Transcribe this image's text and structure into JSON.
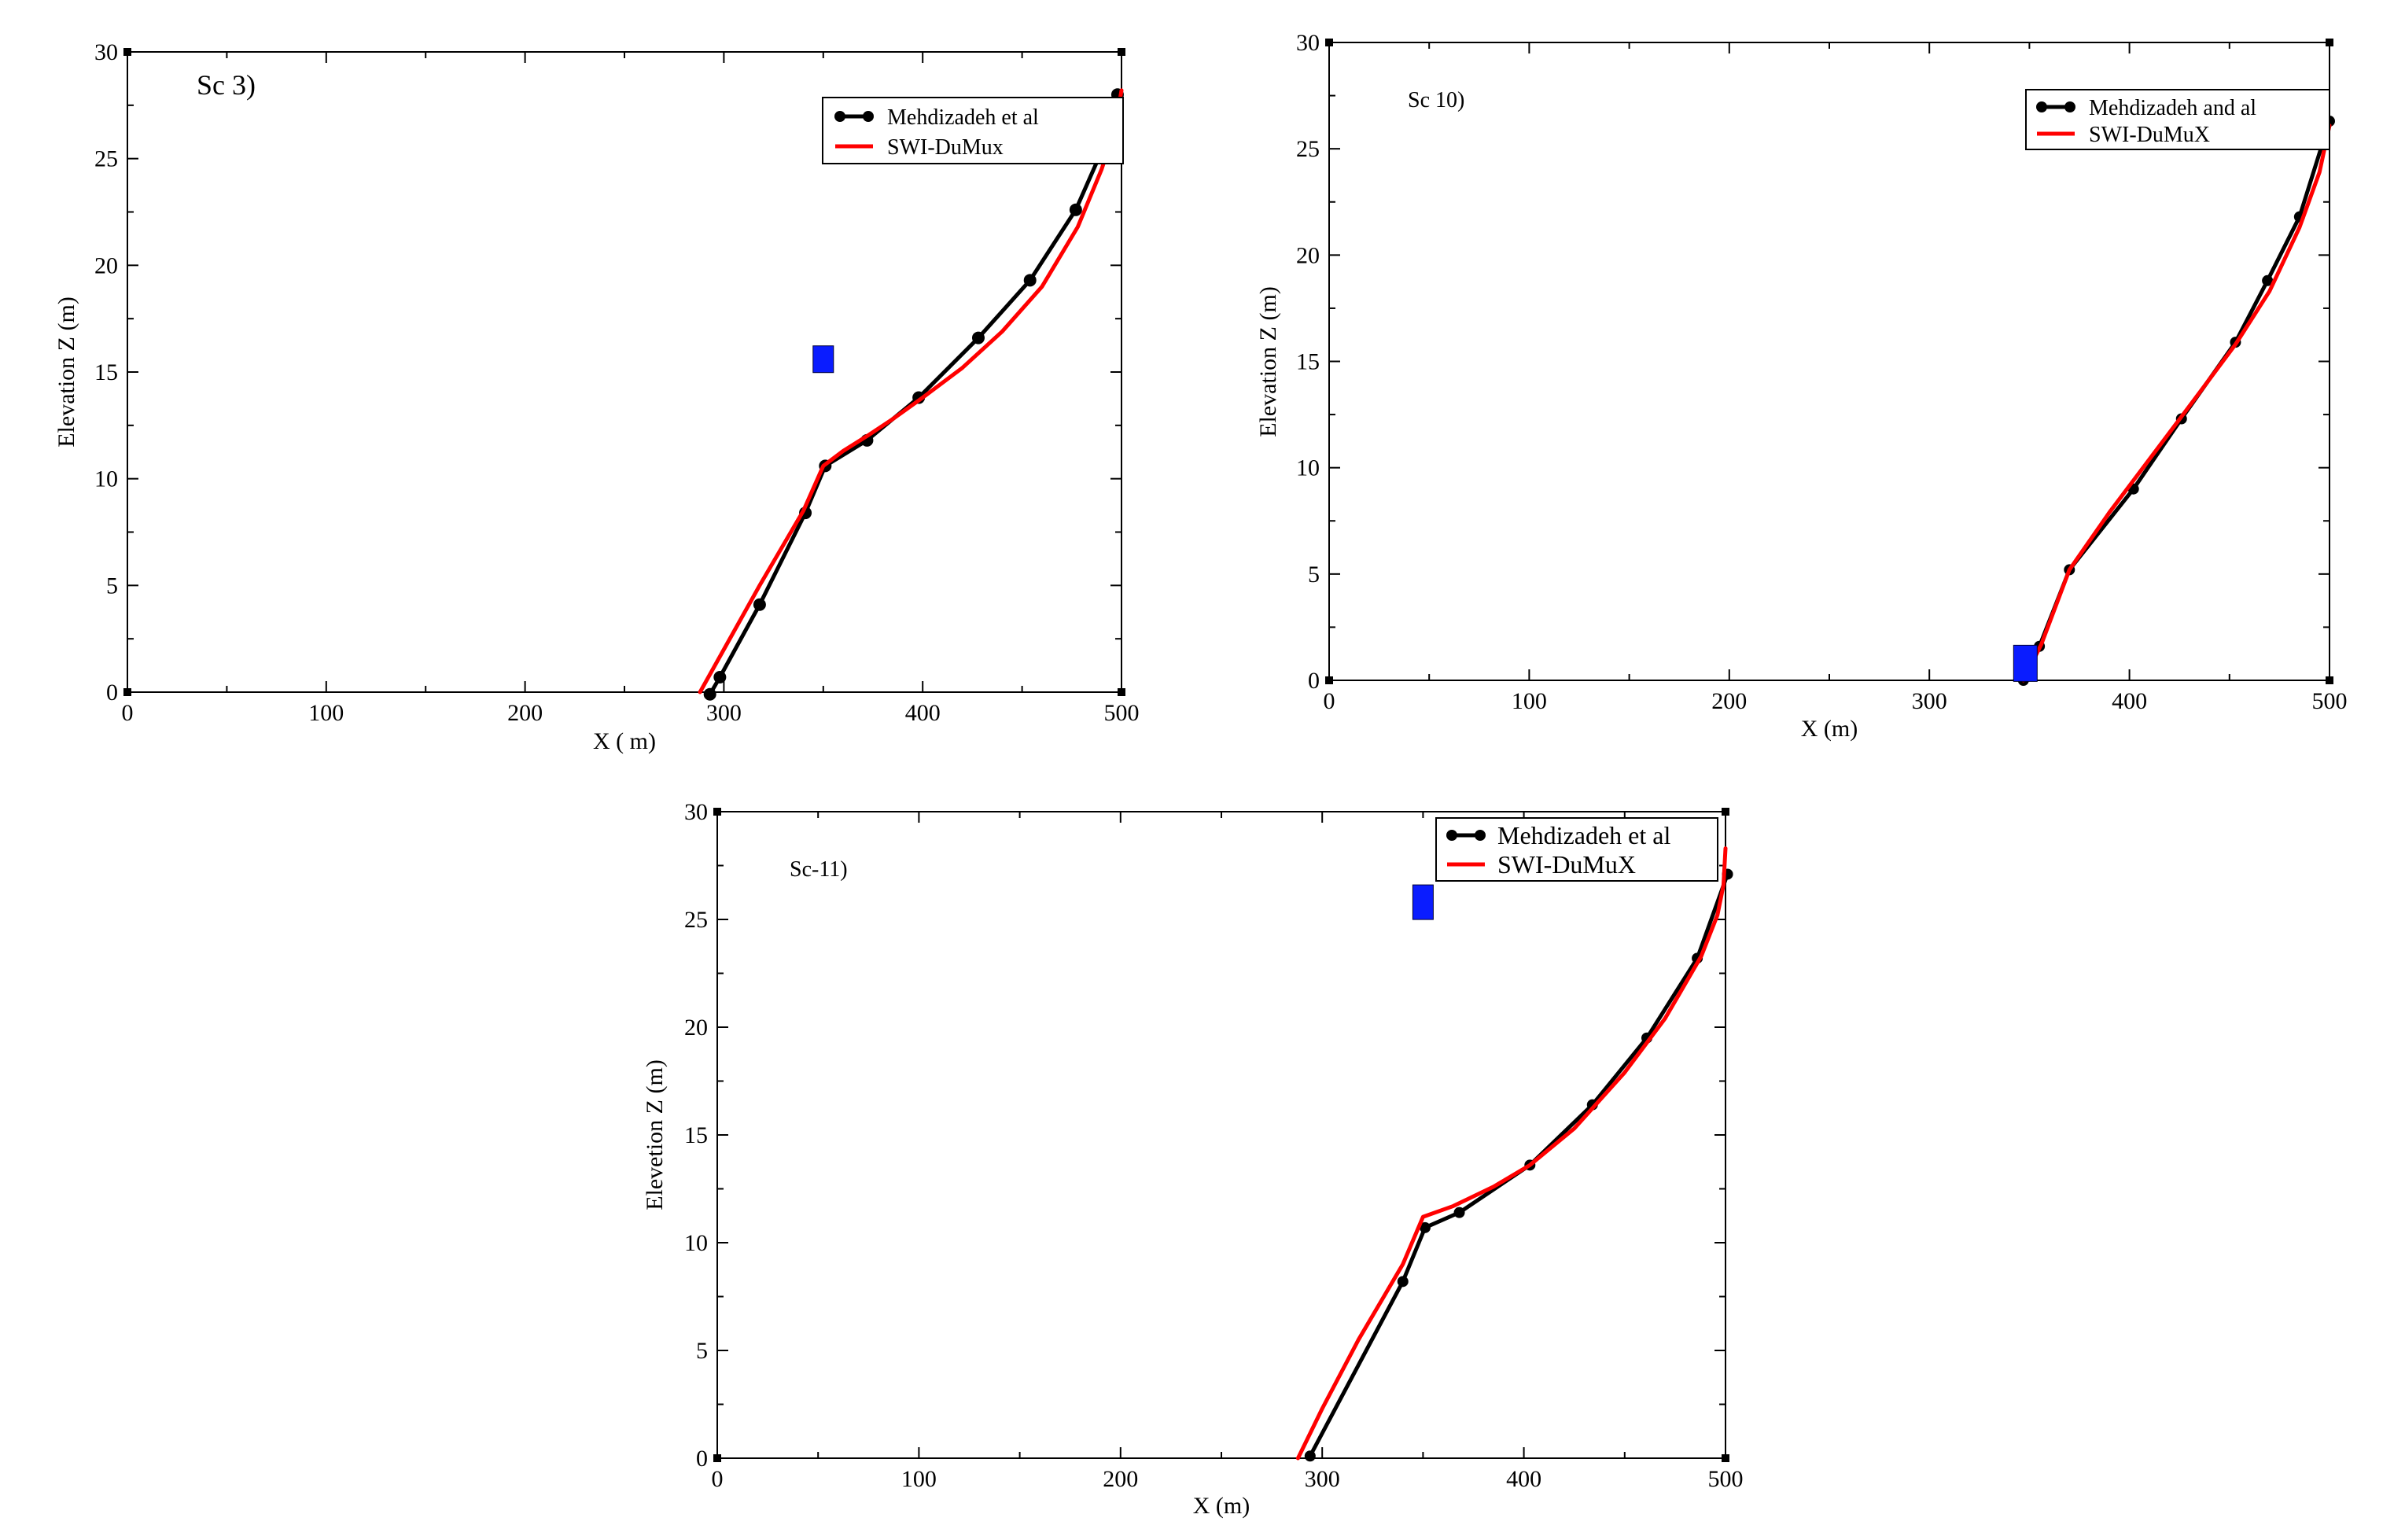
{
  "chart_data": [
    {
      "type": "line",
      "panel_label": "Sc 3)",
      "xlabel": "X ( m)",
      "ylabel": "Elevation Z (m)",
      "xlim": [
        0,
        500
      ],
      "ylim": [
        0,
        30
      ],
      "xticks": [
        0,
        100,
        200,
        300,
        400,
        500
      ],
      "yticks": [
        0,
        5,
        10,
        15,
        20,
        25,
        30
      ],
      "legend_position": "top-right",
      "well_marker": {
        "x": 350,
        "y": 15.6,
        "color": "#0a1cff"
      },
      "series": [
        {
          "name": "Mehdizadeh et al",
          "color": "#000000",
          "markers": true,
          "x": [
            293,
            298,
            318,
            341,
            351,
            372,
            398,
            428,
            454,
            477,
            495,
            498
          ],
          "y": [
            -0.1,
            0.7,
            4.1,
            8.4,
            10.6,
            11.8,
            13.8,
            16.6,
            19.3,
            22.6,
            26.4,
            28.0
          ]
        },
        {
          "name": "SWI-DuMux",
          "color": "#ff0000",
          "markers": false,
          "x": [
            288,
            300,
            318,
            340,
            350,
            360,
            372,
            385,
            400,
            420,
            440,
            460,
            478,
            490,
            497,
            500
          ],
          "y": [
            0.0,
            2.0,
            5.0,
            8.5,
            10.6,
            11.3,
            12.0,
            12.8,
            13.8,
            15.2,
            16.9,
            19.0,
            21.8,
            24.5,
            26.5,
            28.2
          ]
        }
      ]
    },
    {
      "type": "line",
      "panel_label": "Sc 10)",
      "xlabel": "X (m)",
      "ylabel": "Elevation Z (m)",
      "xlim": [
        0,
        500
      ],
      "ylim": [
        0,
        30
      ],
      "xticks": [
        0,
        100,
        200,
        300,
        400,
        500
      ],
      "yticks": [
        0,
        5,
        10,
        15,
        20,
        25,
        30
      ],
      "legend_position": "top-right",
      "well_marker": {
        "x": 348,
        "y": 0.8,
        "color": "#0a1cff"
      },
      "series": [
        {
          "name": "Mehdizadeh and al",
          "color": "#000000",
          "markers": true,
          "x": [
            347,
            355,
            370,
            402,
            426,
            453,
            469,
            485,
            500
          ],
          "y": [
            0.0,
            1.6,
            5.2,
            9.0,
            12.3,
            15.9,
            18.8,
            21.8,
            26.3
          ]
        },
        {
          "name": "SWI-DuMuX",
          "color": "#ff0000",
          "markers": false,
          "x": [
            347,
            356,
            370,
            390,
            410,
            430,
            453,
            470,
            485,
            495,
            500
          ],
          "y": [
            0.0,
            1.7,
            5.2,
            7.9,
            10.4,
            12.9,
            15.8,
            18.3,
            21.3,
            23.9,
            26.1
          ]
        }
      ]
    },
    {
      "type": "line",
      "panel_label": "Sc-11)",
      "xlabel": "X (m)",
      "ylabel": "Elevetion Z (m)",
      "xlim": [
        0,
        500
      ],
      "ylim": [
        0,
        30
      ],
      "xticks": [
        0,
        100,
        200,
        300,
        400,
        500
      ],
      "yticks": [
        0,
        5,
        10,
        15,
        20,
        25,
        30
      ],
      "legend_position": "top-right",
      "well_marker": {
        "x": 350,
        "y": 25.8,
        "color": "#0a1cff"
      },
      "series": [
        {
          "name": "Mehdizadeh et al",
          "color": "#000000",
          "markers": true,
          "x": [
            294,
            340,
            351,
            368,
            403,
            434,
            461,
            486,
            501
          ],
          "y": [
            0.1,
            8.2,
            10.7,
            11.4,
            13.6,
            16.4,
            19.5,
            23.2,
            27.1
          ]
        },
        {
          "name": "SWI-DuMuX",
          "color": "#ff0000",
          "markers": false,
          "x": [
            288,
            300,
            318,
            340,
            350,
            365,
            385,
            403,
            425,
            450,
            470,
            488,
            496,
            499,
            500
          ],
          "y": [
            0.0,
            2.3,
            5.5,
            9.0,
            11.2,
            11.7,
            12.6,
            13.6,
            15.3,
            17.9,
            20.4,
            23.3,
            25.2,
            26.6,
            28.3
          ]
        }
      ]
    }
  ]
}
